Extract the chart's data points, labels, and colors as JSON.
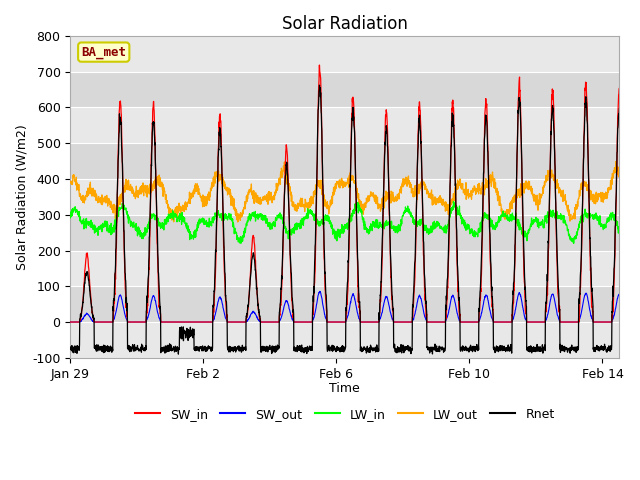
{
  "title": "Solar Radiation",
  "xlabel": "Time",
  "ylabel": "Solar Radiation (W/m2)",
  "ylim": [
    -100,
    800
  ],
  "yticks": [
    -100,
    0,
    100,
    200,
    300,
    400,
    500,
    600,
    700,
    800
  ],
  "xtick_labels": [
    "Jan 29",
    "Feb 2",
    "Feb 6",
    "Feb 10",
    "Feb 14"
  ],
  "xtick_positions": [
    0,
    4,
    8,
    12,
    16
  ],
  "xlim": [
    0,
    16.5
  ],
  "colors": {
    "SW_in": "#ff0000",
    "SW_out": "#0000ff",
    "LW_in": "#00ff00",
    "LW_out": "#ffa500",
    "Rnet": "#000000"
  },
  "annotation_text": "BA_met",
  "annotation_text_color": "#8b0000",
  "annotation_bg": "#ffffcc",
  "annotation_border": "#cccc00",
  "plot_bg": "#d8d8d8",
  "band_color": "#e8e8e8",
  "n_days": 17,
  "n_points_per_day": 144,
  "day_peaks_SW_in": [
    190,
    620,
    610,
    0,
    580,
    240,
    490,
    710,
    640,
    590,
    610,
    620,
    625,
    670,
    650,
    670,
    640
  ],
  "figsize": [
    6.4,
    4.8
  ],
  "dpi": 100
}
